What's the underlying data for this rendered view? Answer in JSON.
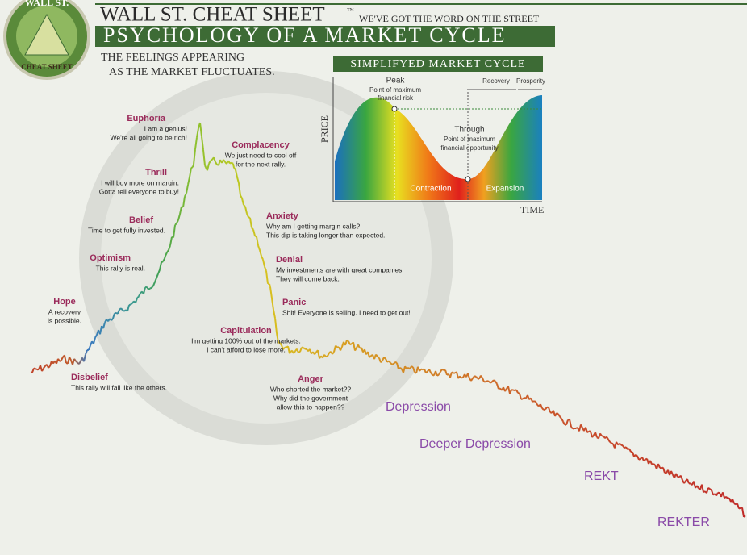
{
  "header": {
    "brand": "WALL ST. CHEAT SHEET",
    "trademark": "™",
    "tagline": "WE'VE GOT THE WORD ON THE STREET",
    "title": "PSYCHOLOGY OF A MARKET CYCLE",
    "subtitle": [
      "THE FEELINGS APPEARING",
      "AS THE MARKET FLUCTUATES."
    ]
  },
  "logo": {
    "top": "WALL ST.",
    "bottom": "CHEAT SHEET"
  },
  "inset": {
    "title": "SIMPLIFYED MARKET CYCLE",
    "y_label": "PRICE",
    "x_label": "TIME",
    "peak": {
      "name": "Peak",
      "lines": [
        "Point of maximum",
        "financial risk"
      ]
    },
    "through": {
      "name": "Through",
      "lines": [
        "Point of maximum",
        "financial opportunity"
      ]
    },
    "recovery": "Recovery",
    "prosperity": "Prosperity",
    "contraction": "Contraction",
    "expansion": "Expansion"
  },
  "stages": [
    {
      "name": "Euphoria",
      "lines": [
        "I am a genius!",
        "We're all going to be rich!"
      ]
    },
    {
      "name": "Complacency",
      "lines": [
        "We just need to cool off",
        "for the next rally."
      ]
    },
    {
      "name": "Thrill",
      "lines": [
        "I will buy more on margin.",
        "Gotta tell everyone to buy!"
      ]
    },
    {
      "name": "Belief",
      "lines": [
        "Time to get fully invested."
      ]
    },
    {
      "name": "Optimism",
      "lines": [
        "This rally is real."
      ]
    },
    {
      "name": "Hope",
      "lines": [
        "A recovery",
        "is possible."
      ]
    },
    {
      "name": "Disbelief",
      "lines": [
        "This rally will fail like the others."
      ]
    },
    {
      "name": "Anxiety",
      "lines": [
        "Why am I getting margin calls?",
        "This dip is taking longer than expected."
      ]
    },
    {
      "name": "Denial",
      "lines": [
        "My investments are with great companies.",
        "They will come back."
      ]
    },
    {
      "name": "Panic",
      "lines": [
        "Shit! Everyone is selling. I need to get out!"
      ]
    },
    {
      "name": "Capitulation",
      "lines": [
        "I'm getting 100% out of the markets.",
        "I can't afford to lose more."
      ]
    },
    {
      "name": "Anger",
      "lines": [
        "Who shorted the market??",
        "Why did the government",
        "allow this to happen??"
      ]
    }
  ],
  "late_stages": [
    "Depression",
    "Deeper Depression",
    "REKT",
    "REKTER"
  ]
}
